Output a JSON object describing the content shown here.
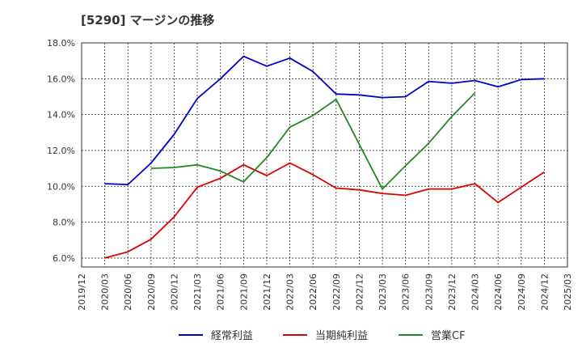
{
  "chart_data": {
    "type": "line",
    "title": "[5290]  マージンの推移",
    "xlabel": "",
    "ylabel": "",
    "ylim": [
      5.5,
      18.0
    ],
    "grid": true,
    "legend_position": "bottom",
    "y_ticks": [
      "6.0%",
      "8.0%",
      "10.0%",
      "12.0%",
      "14.0%",
      "16.0%",
      "18.0%"
    ],
    "y_tick_values": [
      6,
      8,
      10,
      12,
      14,
      16,
      18
    ],
    "x_ticks": [
      "2019/12",
      "2020/03",
      "2020/06",
      "2020/09",
      "2020/12",
      "2021/03",
      "2021/06",
      "2021/09",
      "2021/12",
      "2022/03",
      "2022/06",
      "2022/09",
      "2022/12",
      "2023/03",
      "2023/06",
      "2023/09",
      "2023/12",
      "2024/03",
      "2024/06",
      "2024/09",
      "2024/12",
      "2025/03"
    ],
    "series": [
      {
        "name": "経常利益",
        "color": "#0000cc",
        "values": [
          null,
          10.15,
          10.1,
          11.3,
          12.9,
          14.9,
          16.0,
          17.25,
          16.7,
          17.15,
          16.4,
          15.15,
          15.1,
          14.95,
          15.0,
          15.85,
          15.75,
          15.9,
          15.55,
          15.95,
          16.0,
          null
        ]
      },
      {
        "name": "当期純利益",
        "color": "#dd0000",
        "values": [
          null,
          6.0,
          6.35,
          7.05,
          8.3,
          9.95,
          10.45,
          11.2,
          10.6,
          11.3,
          10.65,
          9.9,
          9.8,
          9.6,
          9.5,
          9.85,
          9.85,
          10.15,
          9.1,
          9.95,
          10.8,
          null
        ]
      },
      {
        "name": "営業CF",
        "color": "#228822",
        "values": [
          null,
          null,
          null,
          11.0,
          11.05,
          11.2,
          10.85,
          10.25,
          11.6,
          13.3,
          13.95,
          14.85,
          12.35,
          9.85,
          11.15,
          12.4,
          13.9,
          15.2,
          null,
          null,
          null,
          null
        ]
      }
    ]
  }
}
